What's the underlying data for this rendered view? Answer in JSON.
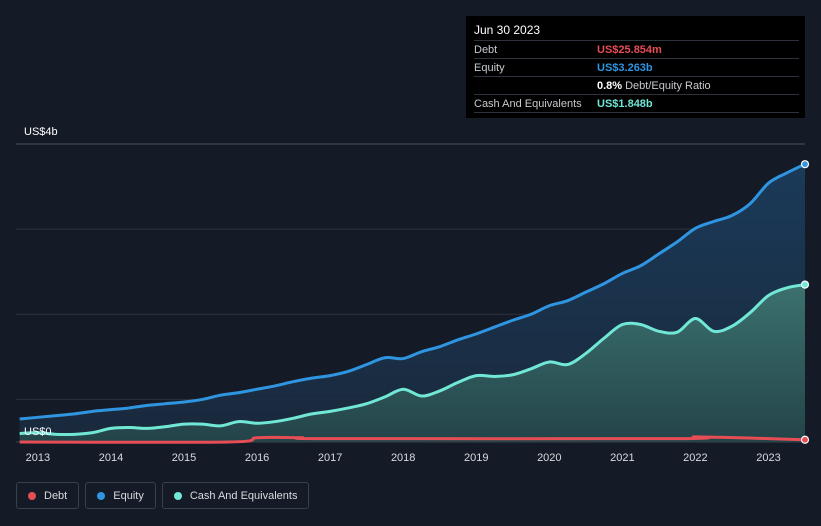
{
  "tooltip": {
    "date": "Jun 30 2023",
    "rows": [
      {
        "label": "Debt",
        "value": "US$25.854m",
        "color": "#e64d55"
      },
      {
        "label": "Equity",
        "value": "US$3.263b",
        "color": "#2f95e1"
      },
      {
        "label": "",
        "value": "0.8%",
        "extra": "Debt/Equity Ratio"
      },
      {
        "label": "Cash And Equivalents",
        "value": "US$1.848b",
        "color": "#71e7d6"
      }
    ]
  },
  "legend": [
    {
      "label": "Debt",
      "color": "#e64d55"
    },
    {
      "label": "Equity",
      "color": "#2f95e1"
    },
    {
      "label": "Cash And Equivalents",
      "color": "#71e7d6"
    }
  ],
  "chart_data": {
    "type": "area",
    "ylabel_top": "US$4b",
    "ylabel_bottom": "US$0",
    "ylim": [
      0,
      3.5
    ],
    "xlim": [
      2012.7,
      2023.5
    ],
    "xticks": [
      "2013",
      "2014",
      "2015",
      "2016",
      "2017",
      "2018",
      "2019",
      "2020",
      "2021",
      "2022",
      "2023"
    ],
    "grid": true,
    "series": [
      {
        "name": "Equity",
        "color": "#2f95e1",
        "x": [
          2012.75,
          2013.0,
          2013.25,
          2013.5,
          2013.75,
          2014.0,
          2014.25,
          2014.5,
          2014.75,
          2015.0,
          2015.25,
          2015.5,
          2015.75,
          2016.0,
          2016.25,
          2016.5,
          2016.75,
          2017.0,
          2017.25,
          2017.5,
          2017.75,
          2018.0,
          2018.25,
          2018.5,
          2018.75,
          2019.0,
          2019.25,
          2019.5,
          2019.75,
          2020.0,
          2020.25,
          2020.5,
          2020.75,
          2021.0,
          2021.25,
          2021.5,
          2021.75,
          2022.0,
          2022.25,
          2022.5,
          2022.75,
          2023.0,
          2023.25,
          2023.5
        ],
        "values": [
          0.27,
          0.29,
          0.31,
          0.33,
          0.36,
          0.38,
          0.4,
          0.43,
          0.45,
          0.47,
          0.5,
          0.55,
          0.58,
          0.62,
          0.66,
          0.71,
          0.75,
          0.78,
          0.83,
          0.91,
          0.99,
          0.98,
          1.06,
          1.12,
          1.2,
          1.27,
          1.35,
          1.43,
          1.5,
          1.6,
          1.66,
          1.76,
          1.86,
          1.98,
          2.07,
          2.21,
          2.35,
          2.51,
          2.59,
          2.66,
          2.8,
          3.04,
          3.16,
          3.263
        ]
      },
      {
        "name": "Cash And Equivalents",
        "color": "#71e7d6",
        "x": [
          2012.75,
          2013.0,
          2013.25,
          2013.5,
          2013.75,
          2014.0,
          2014.25,
          2014.5,
          2014.75,
          2015.0,
          2015.25,
          2015.5,
          2015.75,
          2016.0,
          2016.25,
          2016.5,
          2016.75,
          2017.0,
          2017.25,
          2017.5,
          2017.75,
          2018.0,
          2018.25,
          2018.5,
          2018.75,
          2019.0,
          2019.25,
          2019.5,
          2019.75,
          2020.0,
          2020.25,
          2020.5,
          2020.75,
          2021.0,
          2021.25,
          2021.5,
          2021.75,
          2022.0,
          2022.25,
          2022.5,
          2022.75,
          2023.0,
          2023.25,
          2023.5
        ],
        "values": [
          0.1,
          0.11,
          0.09,
          0.09,
          0.11,
          0.16,
          0.17,
          0.16,
          0.18,
          0.21,
          0.21,
          0.19,
          0.24,
          0.22,
          0.24,
          0.28,
          0.33,
          0.36,
          0.4,
          0.45,
          0.53,
          0.62,
          0.54,
          0.6,
          0.7,
          0.78,
          0.77,
          0.79,
          0.86,
          0.94,
          0.91,
          1.04,
          1.22,
          1.38,
          1.38,
          1.3,
          1.29,
          1.45,
          1.3,
          1.36,
          1.52,
          1.72,
          1.81,
          1.848
        ]
      },
      {
        "name": "Debt",
        "color": "#e64d55",
        "x": [
          2012.75,
          2015.6,
          2016.0,
          2016.6,
          2017.0,
          2021.8,
          2022.0,
          2023.0,
          2023.5
        ],
        "values": [
          0.0,
          0.0,
          0.05,
          0.05,
          0.04,
          0.04,
          0.06,
          0.04,
          0.026
        ]
      }
    ]
  }
}
